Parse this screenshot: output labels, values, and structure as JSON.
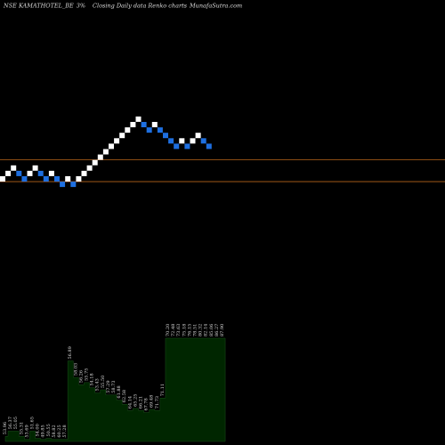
{
  "header": {
    "symbol": "NSE KAMATHOTEL_BE",
    "box_size": "3%",
    "description": "Closing Daily data  Renko  charts",
    "source": "MunafaSutra.com"
  },
  "colors": {
    "background": "#000000",
    "up_brick": "#ffffff",
    "down_brick": "#1e6fe0",
    "level_line": "#b8651b",
    "volume_fill": "#002600",
    "volume_outline": "#1b4d1b",
    "text": "#dcdcdc"
  },
  "chart_data": [
    {
      "type": "renko",
      "x": [
        1,
        2,
        3,
        4,
        5,
        6,
        7,
        8,
        9,
        10,
        11,
        12,
        13,
        14,
        15,
        16,
        17,
        18,
        19,
        20,
        21,
        22,
        23,
        24,
        25,
        26,
        27,
        28,
        29,
        30,
        31,
        32,
        33,
        34,
        35,
        36,
        37,
        38,
        39,
        40,
        41
      ],
      "level": [
        0,
        1,
        2,
        1,
        0,
        1,
        2,
        1,
        0,
        1,
        0,
        -1,
        0,
        -1,
        0,
        1,
        2,
        3,
        4,
        5,
        6,
        7,
        8,
        9,
        10,
        11,
        10,
        9,
        10,
        9,
        8,
        7,
        6,
        7,
        6,
        7,
        8,
        7,
        6,
        null,
        null
      ],
      "direction": [
        "up",
        "up",
        "up",
        "down",
        "down",
        "up",
        "up",
        "down",
        "down",
        "up",
        "down",
        "down",
        "up",
        "down",
        "up",
        "up",
        "up",
        "up",
        "up",
        "up",
        "up",
        "up",
        "up",
        "up",
        "up",
        "up",
        "down",
        "down",
        "up",
        "down",
        "down",
        "down",
        "down",
        "up",
        "down",
        "up",
        "up",
        "down",
        "down",
        "",
        ""
      ],
      "reference_levels": [
        3.5,
        -0.5
      ],
      "ticks": [
        "53.96",
        "56.37",
        "55.05",
        "55.31",
        "53.69",
        "51.65",
        "54.00",
        "49.85",
        "50.55",
        "58.82",
        "60.25",
        "57.28",
        "56.89",
        "58.03",
        "56.26",
        "55.75",
        "54.18",
        "53.43",
        "55.50",
        "57.29",
        "58.73",
        "61.88",
        "62.58",
        "64.14",
        "65.25",
        "66.21",
        "67.78",
        "69.48",
        "71.73",
        "71.11",
        "70.20",
        "72.48",
        "73.63",
        "75.18",
        "76.15",
        "78.51",
        "80.32",
        "82.14",
        "85.06",
        "86.27",
        "87.90"
      ],
      "volume_levels": [
        0.05,
        0.1,
        0.1,
        0.05,
        0.02,
        0.1,
        0.03,
        0.02,
        0.03,
        0.02,
        0.02,
        0.02,
        0.78,
        0.62,
        0.55,
        0.57,
        0.52,
        0.47,
        0.5,
        0.45,
        0.45,
        0.4,
        0.36,
        0.3,
        0.32,
        0.3,
        0.28,
        0.31,
        0.3,
        0.42,
        1,
        1,
        1,
        1,
        1,
        1,
        1,
        1,
        1,
        1,
        1
      ]
    }
  ]
}
